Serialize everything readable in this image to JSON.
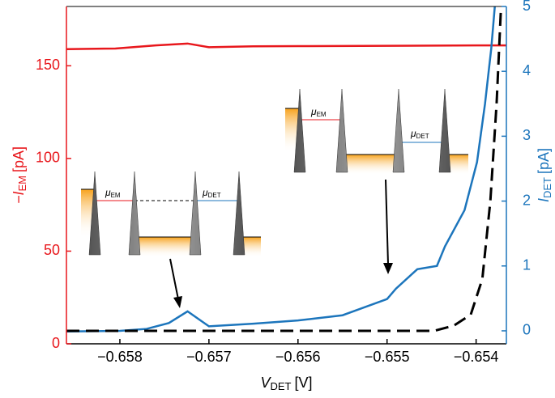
{
  "chart_data": {
    "type": "line",
    "xlabel": {
      "text": "V",
      "sub": "DET",
      "unit": "[V]"
    },
    "ylabel": {
      "text": "−I",
      "sub": "EM",
      "unit": "[pA]",
      "color": "#e8171c"
    },
    "y2label": {
      "text": "I",
      "sub": "DET",
      "unit": "[pA]",
      "color": "#1c75bc"
    },
    "xlim": [
      -0.6586,
      -0.65366
    ],
    "xticks": [
      {
        "value": -0.658,
        "label": "−0.658"
      },
      {
        "value": -0.657,
        "label": "−0.657"
      },
      {
        "value": -0.656,
        "label": "−0.656"
      },
      {
        "value": -0.655,
        "label": "−0.655"
      },
      {
        "value": -0.654,
        "label": "−0.654"
      }
    ],
    "ylim": [
      0,
      182
    ],
    "yticks": [
      0,
      50,
      100,
      150
    ],
    "y2lim": [
      -0.2,
      5
    ],
    "y2ticks": [
      0,
      1,
      2,
      3,
      4,
      5
    ],
    "series": [
      {
        "color": "#e8171c",
        "axis": "y",
        "style": "solid",
        "x": [
          -0.6586,
          -0.65805,
          -0.6576,
          -0.65724,
          -0.657,
          -0.6565,
          -0.656,
          -0.655,
          -0.654,
          -0.65366
        ],
        "values": [
          159,
          159.3,
          161,
          162,
          160,
          160.5,
          160.6,
          160.8,
          161,
          161
        ]
      },
      {
        "color": "#1c75bc",
        "axis": "y2",
        "style": "solid",
        "x": [
          -0.6586,
          -0.658,
          -0.6577,
          -0.65745,
          -0.65724,
          -0.657,
          -0.6565,
          -0.656,
          -0.6555,
          -0.655,
          -0.6549,
          -0.65466,
          -0.65444,
          -0.65435,
          -0.65413,
          -0.65399,
          -0.6539,
          -0.65383,
          -0.65379
        ],
        "values": [
          -0.01,
          0,
          0.03,
          0.12,
          0.3,
          0.07,
          0.11,
          0.16,
          0.24,
          0.49,
          0.65,
          0.95,
          1.0,
          1.3,
          1.86,
          2.6,
          3.5,
          4.35,
          5
        ]
      },
      {
        "color": "#000000",
        "axis": "y2",
        "style": "dashed",
        "x": [
          -0.6586,
          -0.65447,
          -0.65425,
          -0.65406,
          -0.65393,
          -0.65384,
          -0.65377,
          -0.65372
        ],
        "values": [
          0,
          0,
          0.08,
          0.25,
          0.8,
          2.0,
          3.5,
          5
        ]
      }
    ],
    "insets": [
      {
        "mu_em": {
          "text": "μ",
          "sub": "EM"
        },
        "mu_det": {
          "text": "μ",
          "sub": "DET"
        }
      },
      {
        "mu_em": {
          "text": "μ",
          "sub": "EM"
        },
        "mu_det": {
          "text": "μ",
          "sub": "DET"
        }
      }
    ]
  }
}
